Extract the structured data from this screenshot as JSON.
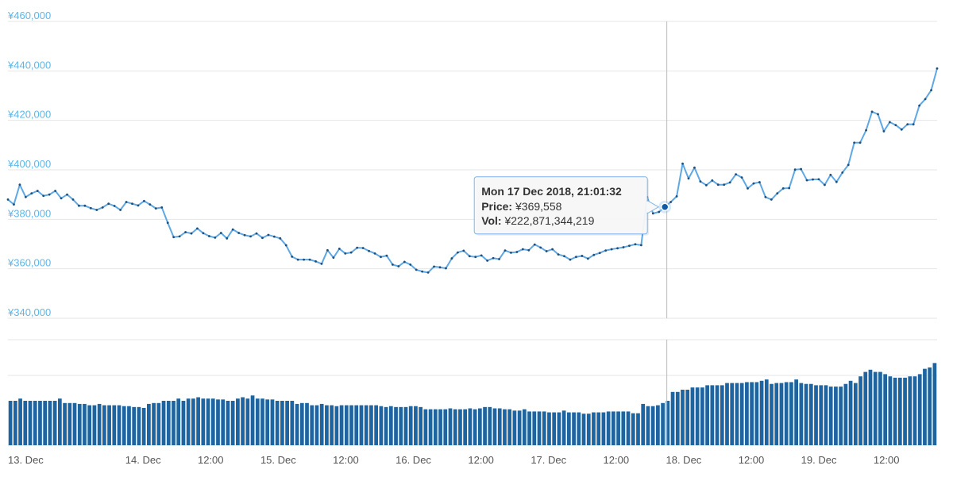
{
  "chart_data": {
    "type": "line",
    "price_axis": {
      "ticks": [
        "¥340,000",
        "¥360,000",
        "¥380,000",
        "¥400,000",
        "¥420,000",
        "¥440,000",
        "¥460,000"
      ],
      "ylim": [
        340000,
        460000
      ]
    },
    "x_axis": {
      "range_hours": [
        0,
        165
      ],
      "ticks": [
        {
          "label": "13. Dec",
          "hour": 0
        },
        {
          "label": "14. Dec",
          "hour": 24
        },
        {
          "label": "12:00",
          "hour": 36
        },
        {
          "label": "15. Dec",
          "hour": 48
        },
        {
          "label": "12:00",
          "hour": 60
        },
        {
          "label": "16. Dec",
          "hour": 72
        },
        {
          "label": "12:00",
          "hour": 84
        },
        {
          "label": "17. Dec",
          "hour": 96
        },
        {
          "label": "12:00",
          "hour": 108
        },
        {
          "label": "18. Dec",
          "hour": 120
        },
        {
          "label": "12:00",
          "hour": 132
        },
        {
          "label": "19. Dec",
          "hour": 144
        },
        {
          "label": "12:00",
          "hour": 156
        }
      ]
    },
    "series": [
      {
        "values": [
          388000,
          386000,
          394000,
          389000,
          390500,
          391500,
          389500,
          390000,
          391500,
          388500,
          390000,
          388000,
          385500,
          385500,
          384500,
          383800,
          384800,
          386300,
          385400,
          383800,
          387000,
          386300,
          385600,
          387400,
          386000,
          384400,
          384800,
          378600,
          372800,
          373100,
          374800,
          374300,
          376300,
          374400,
          373200,
          372600,
          374500,
          372300,
          375900,
          374500,
          373600,
          373100,
          374300,
          372500,
          373700,
          373000,
          372300,
          369500,
          364900,
          363700,
          363700,
          363700,
          363000,
          362000,
          367500,
          364500,
          368100,
          366200,
          366600,
          368500,
          368400,
          367200,
          366200,
          364800,
          365300,
          361700,
          361000,
          362800,
          361700,
          359600,
          358900,
          358500,
          360900,
          360600,
          360200,
          364200,
          366600,
          367300,
          365100,
          364800,
          365400,
          363300,
          364300,
          363900,
          367400,
          366500,
          366800,
          367900,
          367500,
          369800,
          368600,
          367100,
          367900,
          365800,
          365100,
          363700,
          364800,
          365200,
          364100,
          365600,
          366400,
          367400,
          367900,
          368300,
          368700,
          369300,
          369900,
          369558,
          389000,
          382400,
          383000,
          385000,
          387000,
          389300,
          402500,
          396500,
          400900,
          395300,
          393800,
          395700,
          394000,
          394000,
          394900,
          398200,
          396900,
          392500,
          394500,
          395000,
          389000,
          388000,
          390500,
          392500,
          392600,
          400100,
          400300,
          395800,
          396100,
          396200,
          393900,
          398000,
          395100,
          398900,
          402000,
          411000,
          411000,
          416000,
          423500,
          422500,
          415600,
          419300,
          418100,
          416300,
          418400,
          418400,
          426000,
          428600,
          432200,
          441000
        ]
      }
    ],
    "volume_series": {
      "values": [
        1.0,
        1.0,
        1.05,
        1.0,
        1.0,
        1.0,
        1.0,
        1.0,
        1.0,
        1.0,
        1.05,
        0.95,
        0.95,
        0.95,
        0.93,
        0.93,
        0.9,
        0.9,
        0.93,
        0.9,
        0.9,
        0.9,
        0.9,
        0.88,
        0.88,
        0.86,
        0.86,
        0.84,
        0.93,
        0.95,
        0.95,
        1.0,
        1.0,
        1.0,
        1.05,
        1.0,
        1.05,
        1.05,
        1.08,
        1.05,
        1.05,
        1.05,
        1.03,
        1.03,
        1.0,
        1.0,
        1.05,
        1.08,
        1.05,
        1.12,
        1.05,
        1.05,
        1.03,
        1.03,
        1.0,
        1.0,
        1.0,
        1.0,
        0.93,
        0.95,
        0.95,
        0.9,
        0.9,
        0.93,
        0.9,
        0.9,
        0.88,
        0.9,
        0.9,
        0.9,
        0.9,
        0.9,
        0.9,
        0.9,
        0.9,
        0.88,
        0.86,
        0.88,
        0.86,
        0.86,
        0.86,
        0.88,
        0.88,
        0.86,
        0.81,
        0.81,
        0.81,
        0.81,
        0.81,
        0.83,
        0.81,
        0.81,
        0.81,
        0.83,
        0.81,
        0.83,
        0.86,
        0.86,
        0.83,
        0.83,
        0.81,
        0.81,
        0.78,
        0.78,
        0.81,
        0.76,
        0.76,
        0.76,
        0.76,
        0.74,
        0.74,
        0.74,
        0.78,
        0.74,
        0.74,
        0.74,
        0.71,
        0.71,
        0.74,
        0.74,
        0.74,
        0.76,
        0.76,
        0.76,
        0.76,
        0.76,
        0.72,
        0.72,
        0.93,
        0.88,
        0.88,
        0.9,
        0.95,
        1.0,
        1.2,
        1.2,
        1.25,
        1.25,
        1.3,
        1.3,
        1.3,
        1.35,
        1.35,
        1.35,
        1.35,
        1.4,
        1.4,
        1.4,
        1.4,
        1.42,
        1.42,
        1.42,
        1.45,
        1.48,
        1.38,
        1.4,
        1.4,
        1.42,
        1.42,
        1.48,
        1.4,
        1.38,
        1.38,
        1.35,
        1.35,
        1.35,
        1.32,
        1.32,
        1.32,
        1.38,
        1.45,
        1.4,
        1.55,
        1.65,
        1.7,
        1.65,
        1.65,
        1.6,
        1.55,
        1.52,
        1.52,
        1.52,
        1.55,
        1.55,
        1.6,
        1.72,
        1.75,
        1.85
      ]
    },
    "crosshair_hour": 117,
    "tooltip": {
      "title": "Mon 17 Dec 2018, 21:01:32",
      "price_label": "Price:",
      "price_value": "¥369,558",
      "vol_label": "Vol:",
      "vol_value": "¥222,871,344,219"
    },
    "grid": true,
    "colors": {
      "line": "#5ea8e5",
      "marker": "#1f4e79",
      "volume_bar": "#1d64a0",
      "hover_marker": "#0d5aa7",
      "grid": "#e6e6e6",
      "y_label": "#5bb8ea",
      "tooltip_border": "#7cb5ec",
      "crosshair": "#bbbbbb"
    }
  }
}
